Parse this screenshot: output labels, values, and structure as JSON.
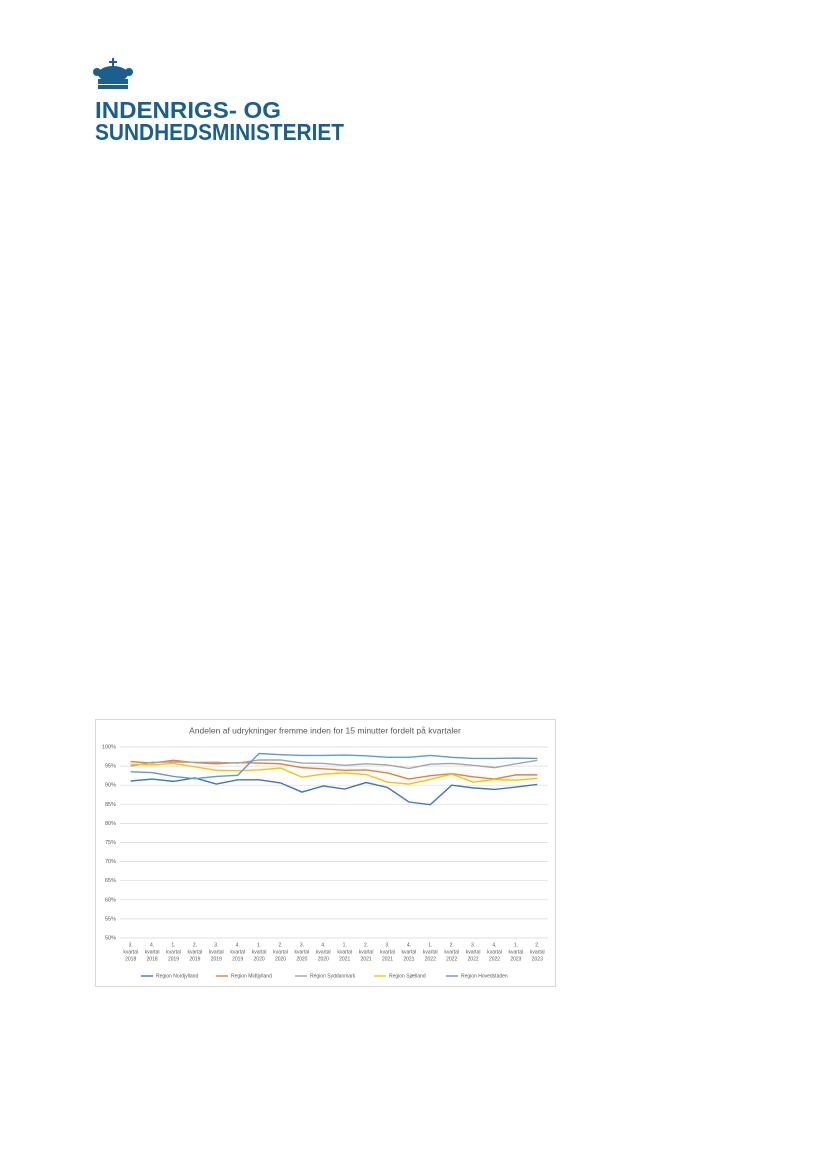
{
  "header": {
    "line1": "INDENRIGS- OG",
    "line2": "SUNDHEDSMINISTERIET"
  },
  "chart_data": {
    "type": "line",
    "title": "Andelen af udrykninger fremme inden for 15 minutter fordelt på kvartaler",
    "categories": [
      [
        "3.",
        "kvartal",
        "2018"
      ],
      [
        "4.",
        "kvartal",
        "2018"
      ],
      [
        "1.",
        "kvartal",
        "2019"
      ],
      [
        "2.",
        "kvartal",
        "2019"
      ],
      [
        "3.",
        "kvartal",
        "2019"
      ],
      [
        "4.",
        "kvartal",
        "2019"
      ],
      [
        "1.",
        "kvartal",
        "2020"
      ],
      [
        "2.",
        "kvartal",
        "2020"
      ],
      [
        "3.",
        "kvartal",
        "2020"
      ],
      [
        "4.",
        "kvartal",
        "2020"
      ],
      [
        "1.",
        "kvartal",
        "2021"
      ],
      [
        "2.",
        "kvartal",
        "2021"
      ],
      [
        "3.",
        "kvartal",
        "2021"
      ],
      [
        "4.",
        "kvartal",
        "2021"
      ],
      [
        "1.",
        "kvartal",
        "2022"
      ],
      [
        "2.",
        "kvartal",
        "2022"
      ],
      [
        "3.",
        "kvartal",
        "2022"
      ],
      [
        "4.",
        "kvartal",
        "2022"
      ],
      [
        "1.",
        "kvartal",
        "2023"
      ],
      [
        "2.",
        "kvartal",
        "2023"
      ]
    ],
    "series": [
      {
        "name": "Region Nordjylland",
        "color": "#4472c4",
        "values": [
          91.1,
          91.6,
          91.0,
          91.9,
          90.3,
          91.4,
          91.4,
          90.6,
          88.2,
          89.8,
          89.0,
          90.7,
          89.4,
          85.6,
          84.9,
          90.0,
          89.3,
          88.9,
          89.5,
          90.2
        ]
      },
      {
        "name": "Region Midtjylland",
        "color": "#ed7d31",
        "values": [
          96.2,
          95.8,
          96.5,
          95.9,
          95.6,
          95.9,
          95.8,
          95.6,
          94.6,
          94.3,
          93.9,
          94.0,
          93.2,
          91.6,
          92.5,
          93.0,
          92.2,
          91.6,
          92.7,
          92.7
        ]
      },
      {
        "name": "Region Syddanmark",
        "color": "#a5a5a5",
        "values": [
          95.0,
          96.0,
          96.1,
          96.0,
          96.0,
          95.8,
          96.6,
          96.6,
          95.8,
          95.7,
          95.2,
          95.6,
          95.3,
          94.4,
          95.5,
          95.7,
          95.2,
          94.6,
          95.6,
          96.5
        ]
      },
      {
        "name": "Region Sjælland",
        "color": "#ffc000",
        "values": [
          95.5,
          95.3,
          95.7,
          94.8,
          93.9,
          93.8,
          94.0,
          94.5,
          92.1,
          92.9,
          93.2,
          92.8,
          90.8,
          90.3,
          91.5,
          92.9,
          90.8,
          91.5,
          91.3,
          91.8
        ]
      },
      {
        "name": "Region Hovedstaden",
        "color": "#5b9bd5",
        "values": [
          93.5,
          93.3,
          92.3,
          91.7,
          92.3,
          92.6,
          98.3,
          98.0,
          97.8,
          97.8,
          97.9,
          97.7,
          97.3,
          97.3,
          97.8,
          97.3,
          97.0,
          97.0,
          97.1,
          97.0
        ]
      }
    ],
    "ylim": [
      50,
      100
    ],
    "yticks": [
      {
        "value": 50,
        "label": "50%"
      },
      {
        "value": 55,
        "label": "55%"
      },
      {
        "value": 60,
        "label": "60%"
      },
      {
        "value": 65,
        "label": "65%"
      },
      {
        "value": 70,
        "label": "70%"
      },
      {
        "value": 75,
        "label": "75%"
      },
      {
        "value": 80,
        "label": "80%"
      },
      {
        "value": 85,
        "label": "85%"
      },
      {
        "value": 90,
        "label": "90%"
      },
      {
        "value": 95,
        "label": "95%"
      },
      {
        "value": 100,
        "label": "100%"
      }
    ],
    "grid": true,
    "legend": "bottom"
  }
}
